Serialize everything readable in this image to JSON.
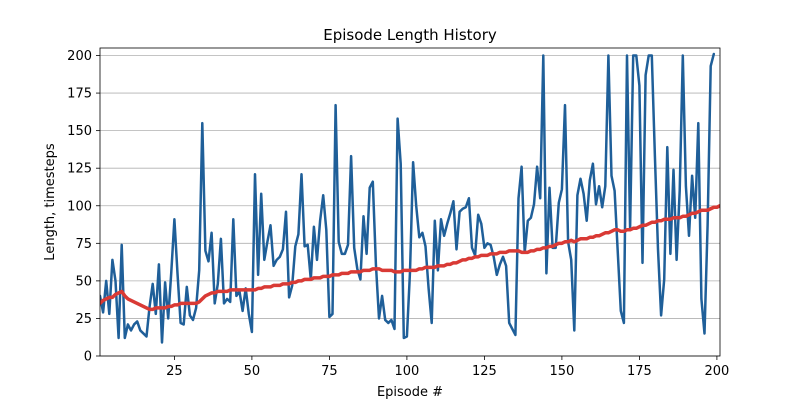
{
  "chart_data": {
    "type": "line",
    "title": "Episode Length History",
    "xlabel": "Episode #",
    "ylabel": "Length, timesteps",
    "xlim": [
      1,
      201
    ],
    "ylim": [
      0,
      205
    ],
    "x_ticks": [
      25,
      50,
      75,
      100,
      125,
      150,
      175,
      200
    ],
    "y_ticks": [
      0,
      25,
      50,
      75,
      100,
      125,
      150,
      175,
      200
    ],
    "grid": "y-major",
    "legend": "none",
    "series": [
      {
        "color": "#1f5f99",
        "line_width": 2.5,
        "x_start": 1,
        "values": [
          40,
          29,
          50,
          28,
          64,
          50,
          12,
          74,
          12,
          21,
          17,
          21,
          23,
          17,
          15,
          13,
          33,
          48,
          28,
          61,
          9,
          49,
          25,
          56,
          91,
          55,
          22,
          21,
          46,
          27,
          24,
          32,
          57,
          155,
          70,
          63,
          82,
          35,
          48,
          78,
          35,
          38,
          36,
          91,
          40,
          43,
          30,
          45,
          28,
          16,
          121,
          54,
          108,
          64,
          76,
          87,
          60,
          64,
          66,
          71,
          96,
          39,
          47,
          73,
          81,
          121,
          73,
          74,
          51,
          86,
          64,
          90,
          107,
          84,
          26,
          28,
          167,
          76,
          68,
          68,
          74,
          133,
          72,
          58,
          51,
          93,
          68,
          112,
          116,
          61,
          25,
          40,
          24,
          22,
          24,
          18,
          158,
          128,
          12,
          13,
          56,
          129,
          100,
          79,
          82,
          73,
          45,
          22,
          90,
          57,
          91,
          80,
          88,
          95,
          103,
          71,
          96,
          98,
          99,
          105,
          72,
          67,
          94,
          88,
          72,
          75,
          74,
          66,
          54,
          61,
          66,
          60,
          22,
          18,
          14,
          105,
          126,
          69,
          90,
          92,
          101,
          126,
          105,
          200,
          55,
          112,
          72,
          72,
          102,
          111,
          167,
          76,
          64,
          17,
          107,
          118,
          108,
          90,
          117,
          128,
          101,
          113,
          99,
          113,
          200,
          120,
          110,
          70,
          30,
          22,
          200,
          85,
          200,
          200,
          180,
          62,
          187,
          200,
          200,
          133,
          71,
          27,
          51,
          139,
          68,
          124,
          64,
          110,
          200,
          113,
          80,
          120,
          92,
          155,
          38,
          15,
          87,
          193,
          201
        ]
      },
      {
        "color": "#d93a35",
        "line_width": 3.5,
        "x_start": 1,
        "values": [
          35,
          37,
          38,
          39,
          39,
          41,
          42,
          43,
          40,
          38,
          37,
          36,
          35,
          34,
          33,
          32,
          31,
          31,
          32,
          32,
          32,
          32,
          33,
          33,
          34,
          34,
          35,
          35,
          35,
          35,
          35,
          35,
          36,
          38,
          40,
          41,
          42,
          42,
          43,
          43,
          43,
          43,
          44,
          44,
          44,
          44,
          44,
          44,
          44,
          44,
          44,
          45,
          45,
          46,
          46,
          46,
          47,
          47,
          47,
          48,
          48,
          48,
          49,
          49,
          50,
          50,
          51,
          51,
          51,
          52,
          52,
          52,
          53,
          53,
          53,
          54,
          54,
          54,
          55,
          55,
          55,
          56,
          56,
          56,
          56,
          57,
          57,
          57,
          58,
          58,
          58,
          57,
          57,
          57,
          57,
          56,
          56,
          56,
          57,
          57,
          57,
          57,
          57,
          58,
          58,
          59,
          59,
          59,
          59,
          60,
          60,
          60,
          61,
          61,
          62,
          62,
          63,
          64,
          64,
          65,
          65,
          66,
          66,
          67,
          67,
          67,
          68,
          68,
          68,
          69,
          69,
          69,
          70,
          70,
          70,
          70,
          69,
          69,
          69,
          70,
          70,
          71,
          71,
          72,
          72,
          73,
          73,
          74,
          75,
          75,
          76,
          76,
          77,
          76,
          77,
          78,
          78,
          78,
          79,
          79,
          80,
          80,
          81,
          82,
          82,
          83,
          84,
          84,
          83,
          83,
          84,
          84,
          85,
          85,
          86,
          87,
          87,
          88,
          89,
          89,
          90,
          90,
          91,
          91,
          91,
          92,
          92,
          92,
          93,
          93,
          94,
          95,
          95,
          96,
          97,
          97,
          97,
          98,
          99,
          99,
          100
        ]
      }
    ]
  }
}
